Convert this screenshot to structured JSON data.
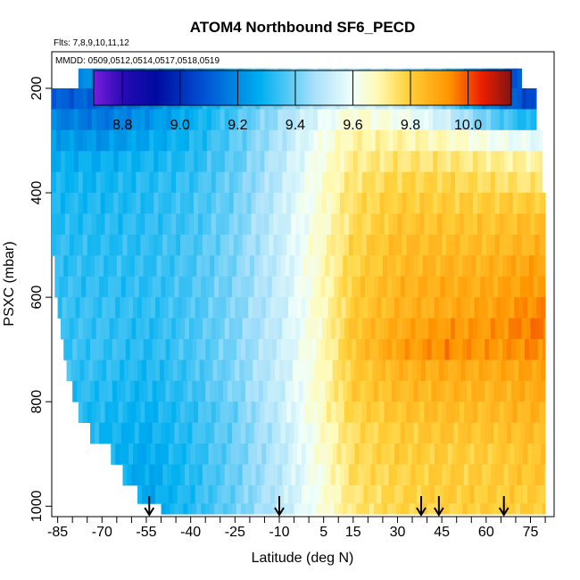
{
  "chart_data": {
    "type": "heatmap",
    "title": "ATOM4 Northbound SF6_PECD",
    "flights_note": "Flts: 7,8,9,10,11,12",
    "dates_note": "MMDD: 0509,0512,0514,0517,0518,0519",
    "xlabel": "Latitude (deg N)",
    "ylabel": "PSXC (mbar)",
    "xlim": [
      -87,
      83
    ],
    "ylim": [
      1020,
      130
    ],
    "x_ticks": [
      -85,
      -70,
      -55,
      -40,
      -25,
      -10,
      5,
      15,
      30,
      45,
      60,
      75
    ],
    "y_ticks": [
      200,
      400,
      600,
      800,
      1000
    ],
    "colorbar": {
      "range": [
        8.7,
        10.15
      ],
      "ticks": [
        8.8,
        9.0,
        9.2,
        9.4,
        9.6,
        9.8,
        10.0
      ],
      "tick_labels": [
        "8.8",
        "9.0",
        "9.2",
        "9.4",
        "9.6",
        "9.8",
        "10.0"
      ]
    },
    "layer_pressures": [
      180,
      220,
      260,
      300,
      340,
      380,
      420,
      460,
      500,
      540,
      580,
      620,
      660,
      700,
      740,
      780,
      820,
      860,
      900,
      940,
      980,
      1010
    ],
    "layer_lat_start": [
      -78,
      -87,
      -87,
      -87,
      -87,
      -87,
      -87,
      -87,
      -87,
      -86,
      -86,
      -85,
      -84,
      -83,
      -82,
      -80,
      -78,
      -74,
      -67,
      -63,
      -58,
      -50
    ],
    "layer_lat_end": [
      72,
      77,
      77,
      79,
      79,
      79,
      80,
      80,
      80,
      80,
      80,
      80,
      80,
      80,
      80,
      80,
      80,
      80,
      80,
      80,
      80,
      80
    ],
    "grid_lats": [
      -85,
      -70,
      -55,
      -40,
      -25,
      -10,
      5,
      15,
      30,
      45,
      60,
      75
    ],
    "values": [
      [
        9.22,
        9.18,
        9.14,
        9.2,
        9.3,
        9.4,
        9.45,
        9.46,
        9.44,
        9.36,
        9.16,
        9.05
      ],
      [
        9.1,
        9.12,
        9.18,
        9.26,
        9.34,
        9.42,
        9.5,
        9.56,
        9.52,
        9.42,
        9.2,
        9.05
      ],
      [
        9.18,
        9.16,
        9.22,
        9.28,
        9.36,
        9.46,
        9.58,
        9.66,
        9.62,
        9.54,
        9.4,
        9.3
      ],
      [
        9.24,
        9.22,
        9.26,
        9.3,
        9.38,
        9.48,
        9.62,
        9.7,
        9.7,
        9.68,
        9.62,
        9.58
      ],
      [
        9.28,
        9.28,
        9.3,
        9.32,
        9.38,
        9.5,
        9.64,
        9.72,
        9.74,
        9.74,
        9.72,
        9.7
      ],
      [
        9.3,
        9.3,
        9.32,
        9.34,
        9.4,
        9.5,
        9.66,
        9.74,
        9.78,
        9.78,
        9.76,
        9.74
      ],
      [
        9.31,
        9.31,
        9.32,
        9.35,
        9.4,
        9.52,
        9.66,
        9.76,
        9.8,
        9.8,
        9.8,
        9.8
      ],
      [
        9.32,
        9.32,
        9.33,
        9.35,
        9.41,
        9.52,
        9.66,
        9.76,
        9.82,
        9.82,
        9.82,
        9.84
      ],
      [
        9.33,
        9.32,
        9.33,
        9.36,
        9.42,
        9.52,
        9.68,
        9.78,
        9.84,
        9.84,
        9.84,
        9.86
      ],
      [
        9.33,
        9.33,
        9.33,
        9.36,
        9.42,
        9.52,
        9.68,
        9.78,
        9.84,
        9.86,
        9.86,
        9.9
      ],
      [
        9.34,
        9.33,
        9.33,
        9.36,
        9.42,
        9.52,
        9.68,
        9.8,
        9.86,
        9.88,
        9.88,
        9.92
      ],
      [
        9.34,
        9.34,
        9.33,
        9.36,
        9.42,
        9.52,
        9.68,
        9.8,
        9.86,
        9.88,
        9.9,
        9.94
      ],
      [
        9.34,
        9.34,
        9.32,
        9.36,
        9.42,
        9.52,
        9.68,
        9.82,
        9.88,
        9.92,
        9.92,
        9.96
      ],
      [
        9.34,
        9.34,
        9.32,
        9.36,
        9.42,
        9.52,
        9.68,
        9.82,
        9.9,
        9.94,
        9.92,
        9.94
      ],
      [
        9.34,
        9.33,
        9.31,
        9.35,
        9.42,
        9.52,
        9.68,
        9.8,
        9.86,
        9.88,
        9.88,
        9.9
      ],
      [
        9.33,
        9.32,
        9.3,
        9.34,
        9.42,
        9.52,
        9.68,
        9.8,
        9.84,
        9.86,
        9.86,
        9.88
      ],
      [
        9.32,
        9.31,
        9.29,
        9.33,
        9.4,
        9.52,
        9.68,
        9.78,
        9.82,
        9.84,
        9.84,
        9.86
      ],
      [
        9.31,
        9.3,
        9.28,
        9.33,
        9.4,
        9.5,
        9.66,
        9.76,
        9.8,
        9.82,
        9.82,
        9.84
      ],
      [
        9.3,
        9.3,
        9.27,
        9.32,
        9.4,
        9.5,
        9.66,
        9.76,
        9.8,
        9.8,
        9.8,
        9.82
      ],
      [
        9.3,
        9.3,
        9.26,
        9.32,
        9.4,
        9.5,
        9.64,
        9.76,
        9.78,
        9.8,
        9.8,
        9.82
      ],
      [
        9.3,
        9.3,
        9.26,
        9.32,
        9.4,
        9.5,
        9.64,
        9.74,
        9.78,
        9.8,
        9.8,
        9.8
      ],
      [
        9.3,
        9.3,
        9.27,
        9.32,
        9.4,
        9.5,
        9.64,
        9.74,
        9.78,
        9.78,
        9.8,
        9.8
      ]
    ],
    "profile_arrows_lat": [
      -54,
      -10,
      38,
      44,
      66
    ]
  }
}
